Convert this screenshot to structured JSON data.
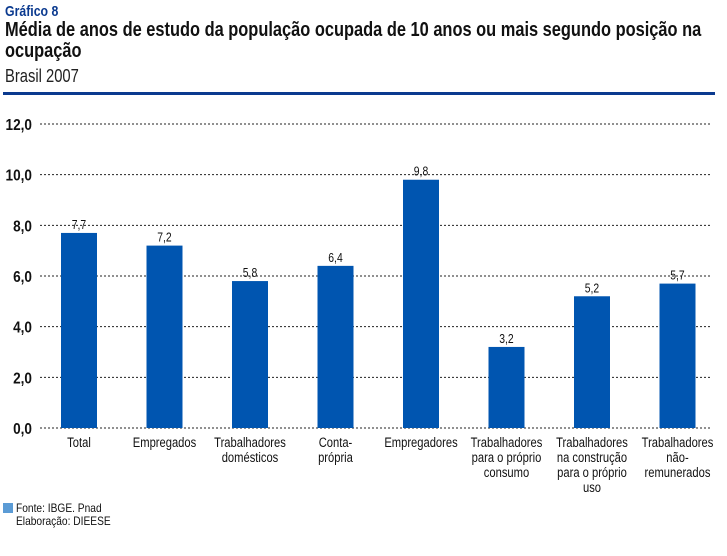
{
  "header": {
    "kicker": "Gráfico 8",
    "title": "Média de anos de estudo da população ocupada de 10 anos ou mais segundo posição na ocupação",
    "subtitle": "Brasil 2007"
  },
  "colors": {
    "bar": "#0055b0",
    "accent": "#0b3a8f",
    "source_swatch": "#5b9bd5"
  },
  "chart_data": {
    "type": "bar",
    "title": "Média de anos de estudo da população ocupada de 10 anos ou mais segundo posição na ocupação",
    "subtitle": "Brasil 2007",
    "xlabel": "",
    "ylabel": "",
    "ylim": [
      0,
      12
    ],
    "yticks": [
      0,
      2,
      4,
      6,
      8,
      10,
      12
    ],
    "ytick_labels": [
      "0,0",
      "2,0",
      "4,0",
      "6,0",
      "8,0",
      "10,0",
      "12,0"
    ],
    "grid": true,
    "categories": [
      [
        "Total"
      ],
      [
        "Empregados"
      ],
      [
        "Trabalhadores",
        "domésticos"
      ],
      [
        "Conta-",
        "própria"
      ],
      [
        "Empregadores"
      ],
      [
        "Trabalhadores",
        "para o próprio",
        "consumo"
      ],
      [
        "Trabalhadores",
        "na construção",
        "para o próprio",
        "uso"
      ],
      [
        "Trabalhadores",
        "não-",
        "remunerados"
      ]
    ],
    "values": [
      7.7,
      7.2,
      5.8,
      6.4,
      9.8,
      3.2,
      5.2,
      5.7
    ],
    "value_labels": [
      "7,7",
      "7,2",
      "5,8",
      "6,4",
      "9,8",
      "3,2",
      "5,2",
      "5,7"
    ]
  },
  "source": {
    "line1": "Fonte: IBGE. Pnad",
    "line2": "Elaboração: DIEESE"
  }
}
